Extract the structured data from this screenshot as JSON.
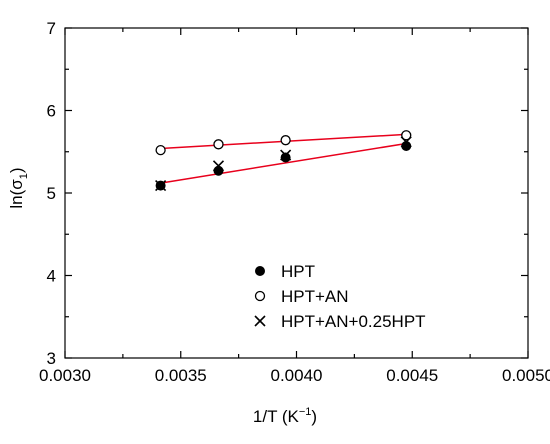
{
  "chart_data": {
    "type": "scatter",
    "xlabel": {
      "base": "1/T (K",
      "sup": "−1",
      "end": ")"
    },
    "ylabel": {
      "base": "ln(σ",
      "sub": "1",
      "end": ")"
    },
    "xlim": [
      0.003,
      0.005
    ],
    "ylim": [
      3,
      7
    ],
    "xticks": [
      "0.0030",
      "0.0035",
      "0.0040",
      "0.0045",
      "0.0050"
    ],
    "yticks": [
      "3",
      "4",
      "5",
      "6",
      "7"
    ],
    "grid": false,
    "legend_position": "bottom-right",
    "fit_color": "#e8001c",
    "series": [
      {
        "name": "HPT",
        "marker": "filled-circle",
        "x": [
          0.003413,
          0.003663,
          0.003953,
          0.004474
        ],
        "y": [
          5.09,
          5.27,
          5.43,
          5.57
        ],
        "fit": [
          [
            0.003413,
            5.12
          ],
          [
            0.004474,
            5.6
          ]
        ]
      },
      {
        "name": "HPT+AN",
        "marker": "open-circle",
        "x": [
          0.003413,
          0.003663,
          0.003953,
          0.004474
        ],
        "y": [
          5.52,
          5.59,
          5.64,
          5.7
        ],
        "fit": [
          [
            0.003413,
            5.54
          ],
          [
            0.004474,
            5.71
          ]
        ]
      },
      {
        "name": "HPT+AN+0.25HPT",
        "marker": "cross",
        "x": [
          0.003413,
          0.003663,
          0.003953,
          0.004474
        ],
        "y": [
          5.09,
          5.33,
          5.46,
          5.62
        ]
      }
    ]
  }
}
